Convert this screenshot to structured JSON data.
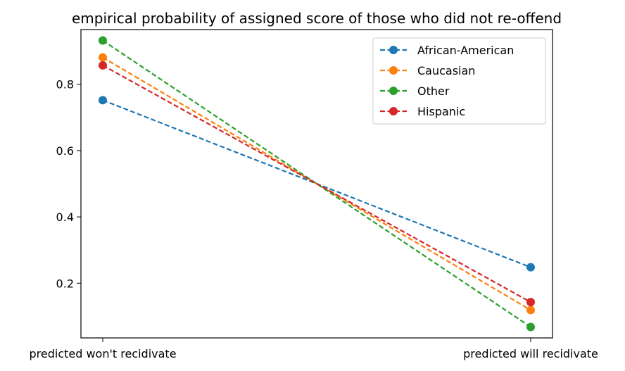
{
  "chart_data": {
    "type": "line",
    "title": "empirical probability of assigned score of those who did not re-offend",
    "xlabel": "",
    "ylabel": "",
    "categories": [
      "predicted won't recidivate",
      "predicted will recidivate"
    ],
    "ylim": [
      0.035,
      0.965
    ],
    "yticks": [
      "0.2",
      "0.4",
      "0.6",
      "0.8"
    ],
    "grid": false,
    "legend": "top-right",
    "series": [
      {
        "name": "African-American",
        "values": [
          0.752,
          0.248
        ],
        "color": "#1f77b4"
      },
      {
        "name": "Caucasian",
        "values": [
          0.881,
          0.119
        ],
        "color": "#ff7f0e"
      },
      {
        "name": "Other",
        "values": [
          0.932,
          0.068
        ],
        "color": "#2ca02c"
      },
      {
        "name": "Hispanic",
        "values": [
          0.857,
          0.143
        ],
        "color": "#d62728"
      }
    ]
  }
}
